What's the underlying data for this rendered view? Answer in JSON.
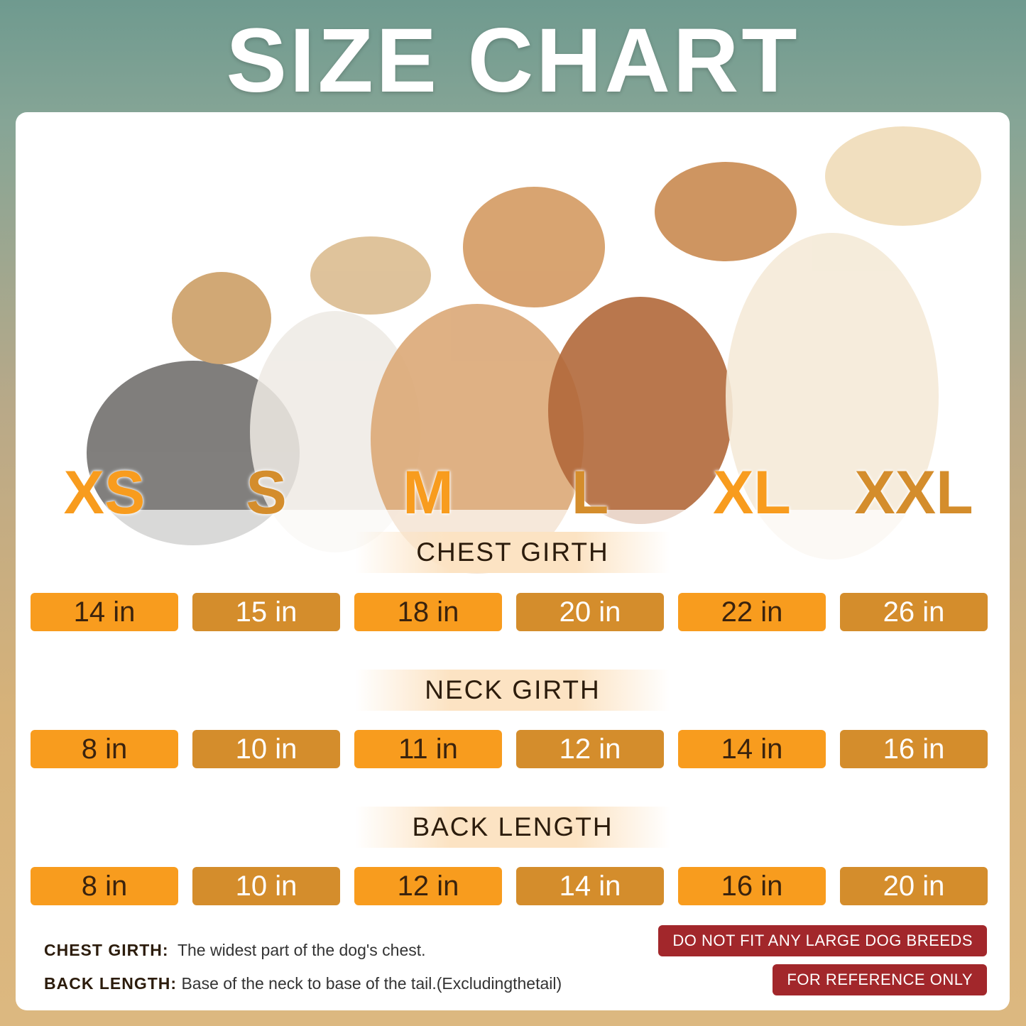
{
  "title": "SIZE CHART",
  "sizes": [
    {
      "label": "XS",
      "color": "#f89c1e"
    },
    {
      "label": "S",
      "color": "#d48d2c"
    },
    {
      "label": "M",
      "color": "#f89c1e"
    },
    {
      "label": "L",
      "color": "#d48d2c"
    },
    {
      "label": "XL",
      "color": "#f89c1e"
    },
    {
      "label": "XXL",
      "color": "#d48d2c"
    }
  ],
  "sections": [
    {
      "label": "CHEST GIRTH",
      "values": [
        "14 in",
        "15 in",
        "18 in",
        "20 in",
        "22 in",
        "26 in"
      ]
    },
    {
      "label": "NECK GIRTH",
      "values": [
        "8 in",
        "10 in",
        "11 in",
        "12 in",
        "14 in",
        "16 in"
      ]
    },
    {
      "label": "BACK LENGTH",
      "values": [
        "8 in",
        "10 in",
        "12 in",
        "14 in",
        "16 in",
        "20 in"
      ]
    }
  ],
  "notes": [
    {
      "term": "CHEST GIRTH:",
      "text": "The widest part of the dog's chest."
    },
    {
      "term": "BACK LENGTH:",
      "text": "Base of the neck to base of the tail.(Excludingthetail)"
    }
  ],
  "warnings": [
    "DO NOT FIT ANY LARGE DOG BREEDS",
    "FOR REFERENCE ONLY"
  ],
  "colors": {
    "orange": "#f89c1e",
    "dark_orange": "#d48d2c",
    "warning_red": "#a2272b"
  }
}
